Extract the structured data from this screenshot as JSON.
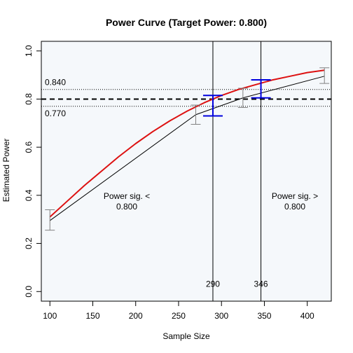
{
  "chart_data": {
    "type": "line",
    "title": "Power Curve (Target Power: 0.800)",
    "xlabel": "Sample Size",
    "ylabel": "Estimated Power",
    "xlim": [
      90,
      428
    ],
    "ylim": [
      -0.04,
      1.04
    ],
    "x_ticks": [
      100,
      150,
      200,
      250,
      300,
      350,
      400
    ],
    "y_ticks": [
      0.0,
      0.2,
      0.4,
      0.6,
      0.8,
      1.0
    ],
    "x_tick_labels": [
      "100",
      "150",
      "200",
      "250",
      "300",
      "350",
      "400"
    ],
    "y_tick_labels": [
      "0.0",
      "0.2",
      "0.4",
      "0.6",
      "0.8",
      "1.0"
    ],
    "grid": false,
    "target_power": 0.8,
    "tolerance_band": [
      0.77,
      0.84
    ],
    "band_labels": {
      "upper": "0.840",
      "lower": "0.770"
    },
    "vertical_markers": [
      {
        "x": 290,
        "label": "290"
      },
      {
        "x": 346,
        "label": "346"
      }
    ],
    "region_labels": {
      "left": [
        "Power sig. <",
        "0.800"
      ],
      "right": [
        "Power sig. >",
        "0.800"
      ]
    },
    "series": [
      {
        "type": "line",
        "color": "#000000",
        "x": [
          100,
          270,
          325,
          420
        ],
        "y": [
          0.295,
          0.735,
          0.805,
          0.895
        ]
      },
      {
        "type": "smooth",
        "color": "#dd1111",
        "x": [
          100,
          120,
          140,
          160,
          180,
          200,
          220,
          240,
          260,
          280,
          300,
          320,
          340,
          360,
          380,
          400,
          420
        ],
        "y": [
          0.31,
          0.375,
          0.44,
          0.5,
          0.56,
          0.615,
          0.665,
          0.71,
          0.75,
          0.785,
          0.815,
          0.84,
          0.86,
          0.88,
          0.895,
          0.91,
          0.92
        ]
      }
    ],
    "error_bars": [
      {
        "x": 100,
        "low": 0.255,
        "high": 0.34,
        "color": "#808080"
      },
      {
        "x": 270,
        "low": 0.695,
        "high": 0.775,
        "color": "#808080"
      },
      {
        "x": 325,
        "low": 0.765,
        "high": 0.845,
        "color": "#808080"
      },
      {
        "x": 420,
        "low": 0.865,
        "high": 0.93,
        "color": "#808080"
      },
      {
        "x": 290,
        "low": 0.73,
        "high": 0.815,
        "color": "#0000dd"
      },
      {
        "x": 346,
        "low": 0.805,
        "high": 0.88,
        "color": "#0000dd"
      }
    ],
    "background_color": "#f5f8fb"
  }
}
